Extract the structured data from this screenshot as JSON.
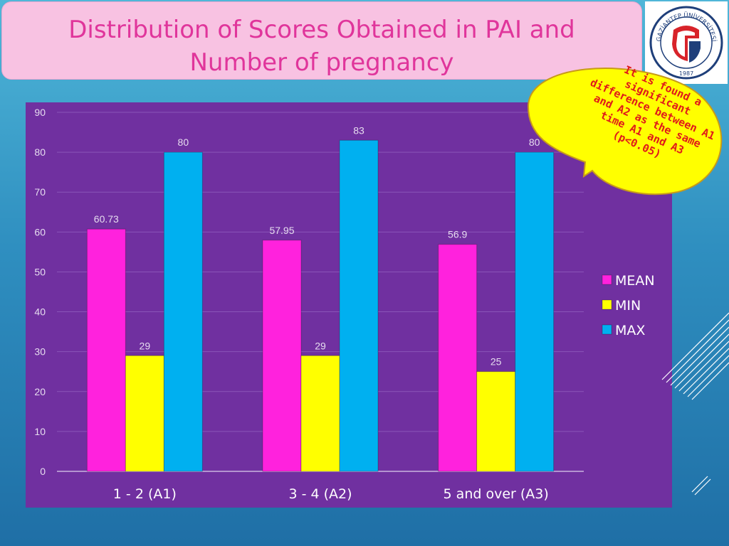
{
  "slide": {
    "title": "Distribution of Scores Obtained in PAI and Number of pregnancy",
    "callout": "It is found a significant difference between A1 and A2 as the same time A1 and A3 (p<0.05)",
    "logo": {
      "ring_text": "GAZİANTEP ÜNİVERSİTESİ",
      "year": "1987"
    }
  },
  "colors": {
    "background_top": "#4fb6d8",
    "title_fill": "#f8c2e2",
    "title_text": "#e0359b",
    "plot_bg": "#7030a0",
    "callout_fill": "#ffff00",
    "callout_text": "#e01a1a"
  },
  "chart_data": {
    "type": "bar",
    "categories": [
      "1 - 2 (A1)",
      "3 - 4 (A2)",
      "5 and over (A3)"
    ],
    "series": [
      {
        "name": "MEAN",
        "values": [
          60.73,
          57.95,
          56.9
        ],
        "labels": [
          "60.73",
          "57.95",
          "56.9"
        ],
        "color": "#ff22dd"
      },
      {
        "name": "MIN",
        "values": [
          29,
          29,
          25
        ],
        "labels": [
          "29",
          "29",
          "25"
        ],
        "color": "#ffff00"
      },
      {
        "name": "MAX",
        "values": [
          80,
          83,
          80
        ],
        "labels": [
          "80",
          "83",
          "80"
        ],
        "color": "#00b0f0"
      }
    ],
    "ylim": [
      0,
      90
    ],
    "yticks": [
      0,
      10,
      20,
      30,
      40,
      50,
      60,
      70,
      80,
      90
    ],
    "grid": true,
    "legend_position": "right"
  }
}
